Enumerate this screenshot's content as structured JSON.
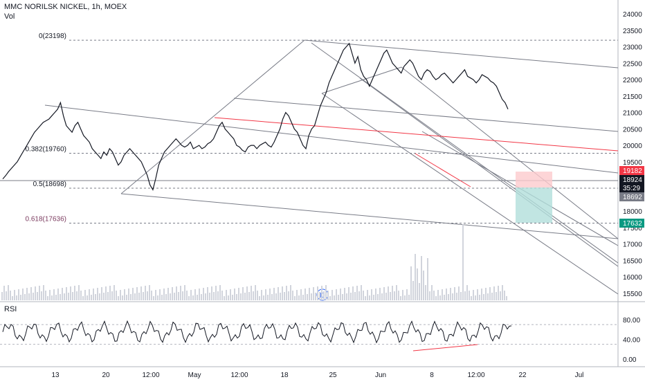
{
  "header": {
    "title": "MMC NORILSK NICKEL, 1h, MOEX",
    "volume_label": "Vol"
  },
  "rsi_panel": {
    "label": "RSI"
  },
  "colors": {
    "candle": "#131722",
    "grid_line": "#d1d4dc",
    "fib_line": "#787b86",
    "trend_red": "#f23645",
    "volume_bar": "#d1d4dc",
    "target_zone": "#b2dfdb",
    "stop_zone": "#fccbcd",
    "price_red": "#f23645",
    "price_dark": "#131722",
    "price_gray": "#787b86",
    "price_teal": "#089981",
    "fib_618": "#7b3b5f"
  },
  "fib_levels": [
    {
      "label": "0(23198)",
      "price": 23198
    },
    {
      "label": "0.382(19760)",
      "price": 19760
    },
    {
      "label": "0.5(18698)",
      "price": 18698
    },
    {
      "label": "0.618(17636)",
      "price": 17636
    }
  ],
  "price_badges": [
    {
      "text": "19182",
      "style": "red"
    },
    {
      "text": "18924",
      "style": "dark"
    },
    {
      "text": "35:29",
      "style": "dark"
    },
    {
      "text": "18692",
      "style": "gray"
    },
    {
      "text": "17632",
      "style": "teal"
    }
  ],
  "event_marker": {
    "label": "D"
  },
  "chart_data": {
    "type": "line",
    "title": "MMC NORILSK NICKEL, 1h, MOEX",
    "x_tick_labels": [
      "13",
      "20",
      "12:00",
      "May",
      "12:00",
      "18",
      "25",
      "Jun",
      "8",
      "12:00",
      "22",
      "Jul"
    ],
    "y_tick_labels": [
      "24000",
      "23500",
      "23000",
      "22500",
      "22000",
      "21500",
      "21000",
      "20500",
      "20000",
      "19500",
      "19000",
      "18500",
      "18000",
      "17500",
      "17000",
      "16500",
      "16000",
      "15500"
    ],
    "ylim": [
      15300,
      24200
    ],
    "rsi_tick_labels": [
      "80.00",
      "40.00",
      "0.00"
    ],
    "rsi_ylim": [
      -10,
      95
    ],
    "series": [
      {
        "name": "",
        "x": [
          0,
          2,
          4,
          6,
          8,
          10,
          12,
          14,
          16,
          18,
          20,
          22,
          24,
          26,
          28,
          30,
          32,
          34,
          36,
          38,
          40,
          42,
          44,
          46,
          48,
          50,
          52,
          54,
          56,
          58,
          60,
          62,
          64,
          66,
          68,
          70,
          72,
          74,
          76,
          78,
          80,
          82,
          84,
          86,
          88,
          90,
          92,
          94,
          96,
          98,
          100,
          102,
          104,
          106,
          108,
          110,
          112,
          114,
          116,
          118,
          120,
          122,
          124,
          126,
          128,
          130,
          132,
          134,
          136,
          138,
          140,
          142,
          144,
          146,
          148,
          150,
          152,
          154,
          156,
          158,
          160,
          162,
          164,
          166,
          168,
          170,
          172,
          174,
          176,
          178,
          180,
          182,
          184,
          186,
          188,
          190,
          192,
          194,
          196,
          198,
          200,
          202,
          204,
          206,
          208,
          210,
          212,
          214,
          216,
          218,
          220,
          222,
          224,
          226,
          228,
          230,
          232,
          234,
          236,
          238,
          240,
          242,
          244,
          246,
          248,
          250,
          252,
          254,
          256,
          258,
          260,
          262,
          264,
          266,
          268,
          270,
          272,
          274,
          276,
          278,
          280,
          282,
          284,
          286,
          288,
          290,
          292,
          294,
          296,
          298,
          300,
          302,
          304,
          306,
          308,
          310,
          312,
          314,
          316,
          318,
          320,
          322,
          324,
          326,
          328,
          330,
          332,
          334,
          336,
          338,
          340,
          342,
          344,
          346,
          348,
          350
        ],
        "y": [
          18980,
          19080,
          19200,
          19300,
          19400,
          19500,
          19650,
          19800,
          19950,
          20100,
          20250,
          20400,
          20500,
          20600,
          20700,
          20750,
          20800,
          20900,
          21000,
          21100,
          21300,
          20900,
          20600,
          20500,
          20400,
          20600,
          20700,
          20500,
          20300,
          20200,
          20100,
          19900,
          19800,
          19700,
          19600,
          19800,
          19700,
          19900,
          19800,
          19600,
          19400,
          19500,
          19700,
          19800,
          19900,
          19800,
          19700,
          19600,
          19500,
          19300,
          19100,
          18800,
          18650,
          19000,
          19400,
          19600,
          19800,
          19900,
          20000,
          20100,
          20200,
          20100,
          20000,
          19950,
          20000,
          20100,
          19900,
          19950,
          20000,
          19900,
          19950,
          20050,
          20100,
          20200,
          20400,
          20600,
          20700,
          20500,
          20400,
          20300,
          20200,
          20000,
          19950,
          19850,
          19800,
          19950,
          20000,
          20000,
          19900,
          20000,
          20050,
          20100,
          20000,
          19950,
          20100,
          20300,
          20500,
          20800,
          21000,
          20900,
          20700,
          20500,
          20400,
          20200,
          20000,
          19900,
          20300,
          20500,
          20600,
          20900,
          21200,
          21400,
          21600,
          21900,
          22100,
          22300,
          22500,
          22700,
          22900,
          23000,
          23100,
          22800,
          22500,
          22700,
          22300,
          22100,
          22000,
          21800,
          22000,
          22200,
          22400,
          22600,
          22800,
          22900,
          22700,
          22500,
          22400,
          22300,
          22200,
          22400,
          22500,
          22600,
          22500,
          22300,
          22100,
          22000,
          22200,
          22300,
          22250,
          22100,
          22000,
          22050,
          22150,
          22200,
          22100,
          22000,
          21900,
          22000,
          22100,
          22200,
          22300,
          22100,
          22050,
          22000,
          21900,
          22000,
          22150,
          22100,
          22050,
          21950,
          21900,
          21800,
          21600,
          21400,
          21300,
          21100
        ]
      }
    ]
  }
}
